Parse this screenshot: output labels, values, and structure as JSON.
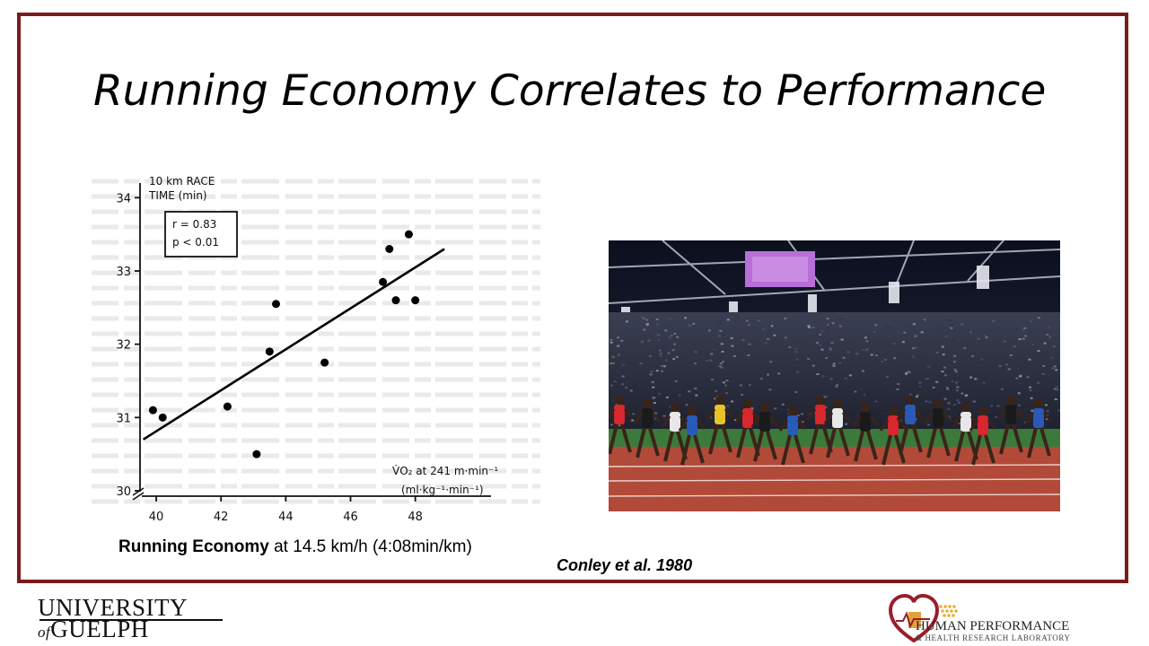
{
  "slide": {
    "title": "Running Economy Correlates to Performance",
    "caption_bold": "Running Economy",
    "caption_rest": " at 14.5 km/h (4:08min/km)",
    "citation": "Conley et al. 1980"
  },
  "chart_data": {
    "type": "scatter",
    "ylabel_line1": "10 km RACE",
    "ylabel_line2": "TIME (min)",
    "xlabel_line1": "V̇O₂ at 241 m·min⁻¹",
    "xlabel_line2": "(ml·kg⁻¹·min⁻¹)",
    "stats_line1": "r = 0.83",
    "stats_line2": "p < 0.01",
    "xlim": [
      39.5,
      50.2
    ],
    "ylim": [
      30,
      34.2
    ],
    "x_ticks": [
      40,
      42,
      44,
      46,
      48
    ],
    "x_tick_labels": [
      "40",
      "42",
      "44",
      "46",
      "48"
    ],
    "y_ticks": [
      30,
      31,
      32,
      33,
      34
    ],
    "y_tick_labels": [
      "30",
      "31",
      "32",
      "33",
      "34"
    ],
    "points": [
      {
        "x": 39.9,
        "y": 31.1
      },
      {
        "x": 40.2,
        "y": 31.0
      },
      {
        "x": 42.2,
        "y": 31.15
      },
      {
        "x": 43.1,
        "y": 30.5
      },
      {
        "x": 43.5,
        "y": 31.9
      },
      {
        "x": 43.7,
        "y": 32.55
      },
      {
        "x": 45.2,
        "y": 31.75
      },
      {
        "x": 47.0,
        "y": 32.85
      },
      {
        "x": 47.2,
        "y": 33.3
      },
      {
        "x": 47.4,
        "y": 32.6
      },
      {
        "x": 47.8,
        "y": 33.5
      },
      {
        "x": 48.0,
        "y": 32.6
      }
    ],
    "regression": {
      "x1": 39.6,
      "y1": 30.7,
      "x2": 48.9,
      "y2": 33.3
    }
  },
  "logos": {
    "university_line1": "UNIVERSITY",
    "university_of": "of",
    "university_line2": "GUELPH",
    "lab_line1": "HUMAN PERFORMANCE",
    "lab_line2": "& HEALTH RESEARCH LABORATORY"
  },
  "colors": {
    "frame": "#7b1a1a",
    "track": "#b24a3a",
    "heart": "#9b1d2a"
  }
}
